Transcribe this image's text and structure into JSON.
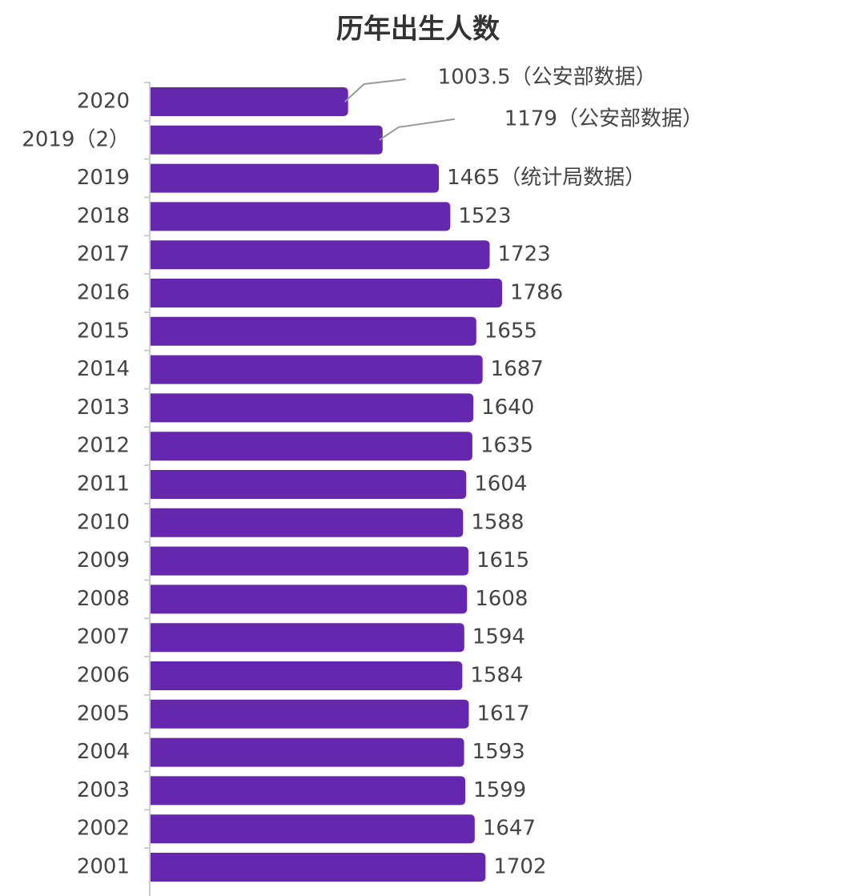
{
  "chart_data": {
    "type": "barh",
    "title": "历年出生人数",
    "categories": [
      "2020",
      "2019（2）",
      "2019",
      "2018",
      "2017",
      "2016",
      "2015",
      "2014",
      "2013",
      "2012",
      "2011",
      "2010",
      "2009",
      "2008",
      "2007",
      "2006",
      "2005",
      "2004",
      "2003",
      "2002",
      "2001"
    ],
    "values": [
      1003.5,
      1179,
      1465,
      1523,
      1723,
      1786,
      1655,
      1687,
      1640,
      1635,
      1604,
      1588,
      1615,
      1608,
      1594,
      1584,
      1617,
      1593,
      1599,
      1647,
      1702
    ],
    "value_labels": [
      "1003.5（公安部数据）",
      "1179（公安部数据）",
      "1465（统计局数据）",
      "1523",
      "1723",
      "1786",
      "1655",
      "1687",
      "1640",
      "1635",
      "1604",
      "1588",
      "1615",
      "1608",
      "1594",
      "1584",
      "1617",
      "1593",
      "1599",
      "1647",
      "1702"
    ],
    "color": "#6527ae"
  }
}
